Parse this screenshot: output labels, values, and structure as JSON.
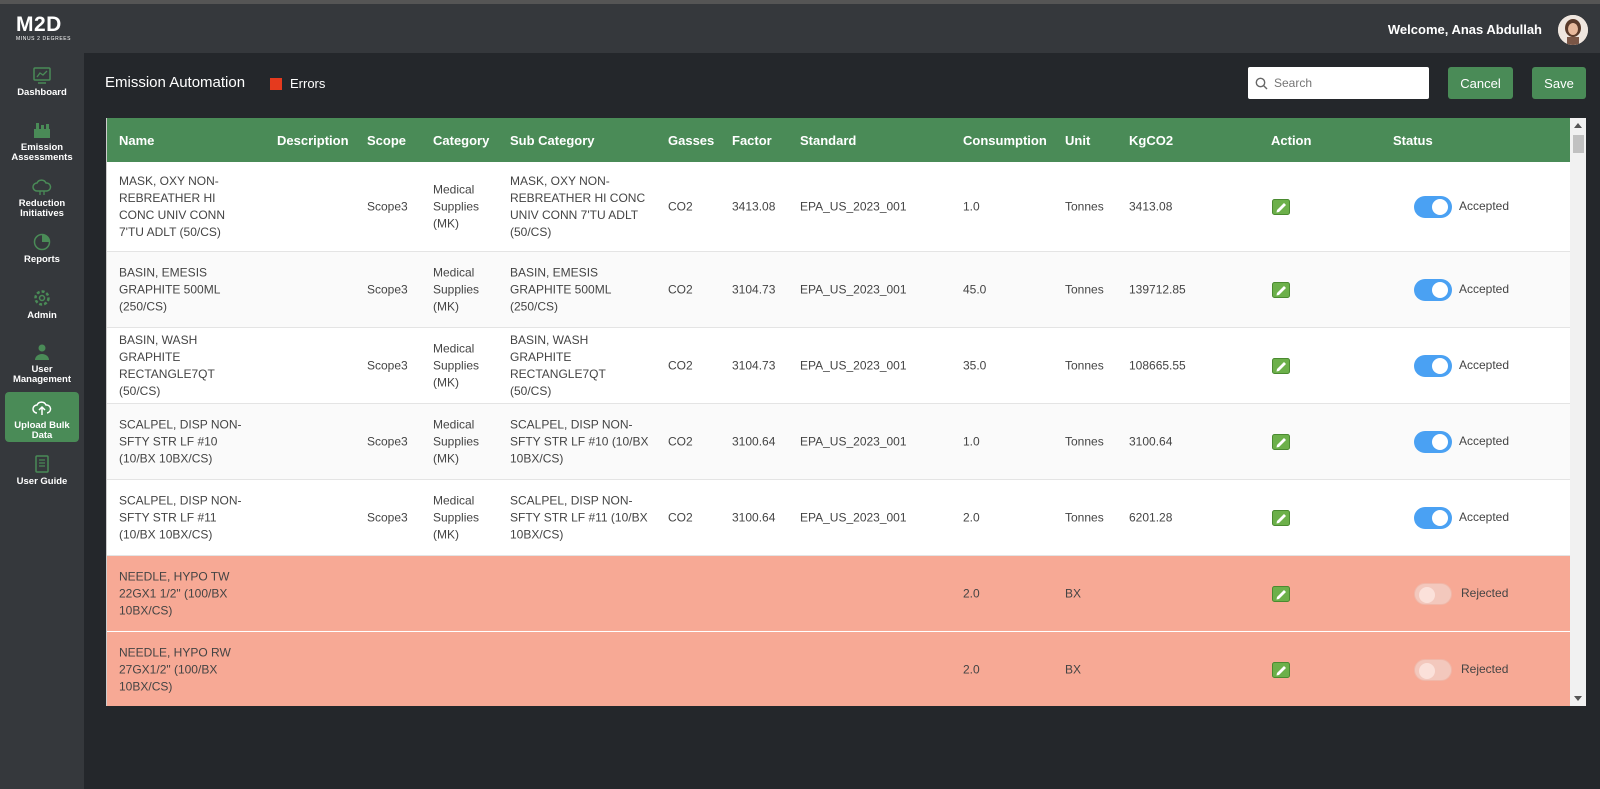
{
  "app": {
    "logo_text": "M2D",
    "logo_sub": "MINUS 2 DEGREES",
    "welcome": "Welcome, Anas Abdullah"
  },
  "sidebar": {
    "items": [
      {
        "label": "Dashboard",
        "icon": "dashboard-icon"
      },
      {
        "label": "Emission Assessments",
        "icon": "factory-icon"
      },
      {
        "label": "Reduction Initiatives",
        "icon": "cloud-icon"
      },
      {
        "label": "Reports",
        "icon": "chart-pie-icon"
      },
      {
        "label": "Admin",
        "icon": "gear-icon"
      },
      {
        "label": "User Management",
        "icon": "users-icon"
      },
      {
        "label": "Upload Bulk Data",
        "icon": "cloud-upload-icon",
        "active": true
      },
      {
        "label": "User Guide",
        "icon": "book-icon"
      }
    ]
  },
  "page": {
    "title": "Emission Automation",
    "errors_label": "Errors",
    "search_placeholder": "Search",
    "cancel_label": "Cancel",
    "save_label": "Save"
  },
  "colors": {
    "accent": "#4a8b57",
    "error": "#e53a1e",
    "error_row": "#f7a995",
    "toggle_on": "#4aa1f3"
  },
  "table": {
    "headers": [
      "Name",
      "Description",
      "Scope",
      "Category",
      "Sub Category",
      "Gasses",
      "Factor",
      "Standard",
      "Consumption",
      "Unit",
      "KgCO2",
      "Action",
      "Status"
    ],
    "rows": [
      {
        "name": "MASK, OXY NON-REBREATHER HI CONC UNIV CONN 7'TU ADLT (50/CS)",
        "description": "",
        "scope": "Scope3",
        "category": "Medical Supplies (MK)",
        "sub_category": "MASK, OXY NON-REBREATHER HI CONC UNIV CONN 7'TU ADLT (50/CS)",
        "gasses": "CO2",
        "factor": "3413.08",
        "standard": "EPA_US_2023_001",
        "consumption": "1.0",
        "unit": "Tonnes",
        "kgco2": "3413.08",
        "status": "Accepted",
        "accepted": true
      },
      {
        "name": "BASIN, EMESIS GRAPHITE 500ML (250/CS)",
        "description": "",
        "scope": "Scope3",
        "category": "Medical Supplies (MK)",
        "sub_category": "BASIN, EMESIS GRAPHITE 500ML (250/CS)",
        "gasses": "CO2",
        "factor": "3104.73",
        "standard": "EPA_US_2023_001",
        "consumption": "45.0",
        "unit": "Tonnes",
        "kgco2": "139712.85",
        "status": "Accepted",
        "accepted": true
      },
      {
        "name": "BASIN, WASH GRAPHITE RECTANGLE7QT (50/CS)",
        "description": "",
        "scope": "Scope3",
        "category": "Medical Supplies (MK)",
        "sub_category": "BASIN, WASH GRAPHITE RECTANGLE7QT (50/CS)",
        "gasses": "CO2",
        "factor": "3104.73",
        "standard": "EPA_US_2023_001",
        "consumption": "35.0",
        "unit": "Tonnes",
        "kgco2": "108665.55",
        "status": "Accepted",
        "accepted": true
      },
      {
        "name": "SCALPEL, DISP NON-SFTY STR LF #10 (10/BX 10BX/CS)",
        "description": "",
        "scope": "Scope3",
        "category": "Medical Supplies (MK)",
        "sub_category": "SCALPEL, DISP NON-SFTY STR LF #10 (10/BX 10BX/CS)",
        "gasses": "CO2",
        "factor": "3100.64",
        "standard": "EPA_US_2023_001",
        "consumption": "1.0",
        "unit": "Tonnes",
        "kgco2": "3100.64",
        "status": "Accepted",
        "accepted": true
      },
      {
        "name": "SCALPEL, DISP NON-SFTY STR LF #11 (10/BX 10BX/CS)",
        "description": "",
        "scope": "Scope3",
        "category": "Medical Supplies (MK)",
        "sub_category": "SCALPEL, DISP NON-SFTY STR LF #11 (10/BX 10BX/CS)",
        "gasses": "CO2",
        "factor": "3100.64",
        "standard": "EPA_US_2023_001",
        "consumption": "2.0",
        "unit": "Tonnes",
        "kgco2": "6201.28",
        "status": "Accepted",
        "accepted": true
      },
      {
        "name": "NEEDLE, HYPO TW 22GX1 1/2\" (100/BX 10BX/CS)",
        "description": "",
        "scope": "",
        "category": "",
        "sub_category": "",
        "gasses": "",
        "factor": "",
        "standard": "",
        "consumption": "2.0",
        "unit": "BX",
        "kgco2": "",
        "status": "Rejected",
        "accepted": false
      },
      {
        "name": "NEEDLE, HYPO RW 27GX1/2\" (100/BX 10BX/CS)",
        "description": "",
        "scope": "",
        "category": "",
        "sub_category": "",
        "gasses": "",
        "factor": "",
        "standard": "",
        "consumption": "2.0",
        "unit": "BX",
        "kgco2": "",
        "status": "Rejected",
        "accepted": false
      }
    ]
  }
}
